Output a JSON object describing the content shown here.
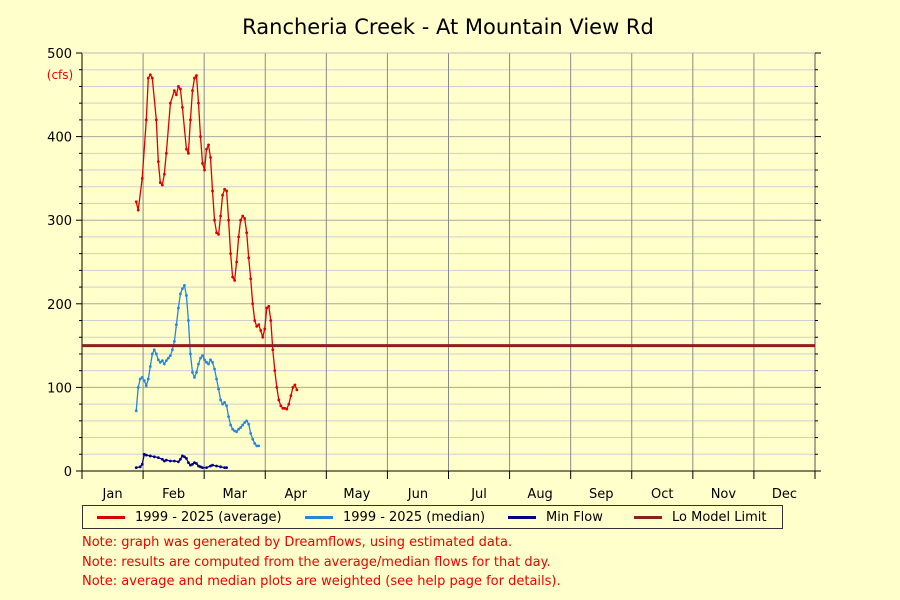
{
  "chart_data": {
    "type": "line",
    "title": "Rancheria Creek - At Mountain View Rd",
    "ylabel": "(cfs)",
    "ylim": [
      0,
      500
    ],
    "yticks": [
      "0",
      "100",
      "200",
      "300",
      "400",
      "500"
    ],
    "month_labels": [
      "Jan",
      "Feb",
      "Mar",
      "Apr",
      "May",
      "Jun",
      "Jul",
      "Aug",
      "Sep",
      "Oct",
      "Nov",
      "Dec"
    ],
    "xlim": [
      0,
      365
    ],
    "x_unit": "day of year",
    "grid": true,
    "legend_position": "bottom",
    "series": [
      {
        "name": "1999 - 2025 (average)",
        "color": "#dd0000",
        "points": [
          [
            27,
            322
          ],
          [
            28,
            312
          ],
          [
            30,
            350
          ],
          [
            32,
            420
          ],
          [
            33,
            470
          ],
          [
            34,
            474
          ],
          [
            35,
            470
          ],
          [
            37,
            420
          ],
          [
            38,
            370
          ],
          [
            39,
            345
          ],
          [
            40,
            342
          ],
          [
            41,
            355
          ],
          [
            42,
            380
          ],
          [
            44,
            440
          ],
          [
            46,
            455
          ],
          [
            47,
            450
          ],
          [
            48,
            460
          ],
          [
            49,
            457
          ],
          [
            50,
            435
          ],
          [
            52,
            385
          ],
          [
            53,
            380
          ],
          [
            54,
            420
          ],
          [
            55,
            455
          ],
          [
            56,
            470
          ],
          [
            57,
            473
          ],
          [
            58,
            440
          ],
          [
            59,
            400
          ],
          [
            60,
            368
          ],
          [
            61,
            360
          ],
          [
            62,
            385
          ],
          [
            63,
            390
          ],
          [
            64,
            375
          ],
          [
            65,
            335
          ],
          [
            66,
            300
          ],
          [
            67,
            285
          ],
          [
            68,
            283
          ],
          [
            69,
            305
          ],
          [
            70,
            330
          ],
          [
            71,
            337
          ],
          [
            72,
            335
          ],
          [
            73,
            300
          ],
          [
            74,
            260
          ],
          [
            75,
            232
          ],
          [
            76,
            228
          ],
          [
            77,
            250
          ],
          [
            78,
            280
          ],
          [
            79,
            300
          ],
          [
            80,
            305
          ],
          [
            81,
            302
          ],
          [
            82,
            285
          ],
          [
            83,
            255
          ],
          [
            84,
            230
          ],
          [
            85,
            200
          ],
          [
            86,
            180
          ],
          [
            87,
            173
          ],
          [
            88,
            175
          ],
          [
            89,
            168
          ],
          [
            90,
            160
          ],
          [
            91,
            170
          ],
          [
            92,
            195
          ],
          [
            93,
            197
          ],
          [
            94,
            180
          ],
          [
            95,
            145
          ],
          [
            96,
            120
          ],
          [
            97,
            100
          ],
          [
            98,
            85
          ],
          [
            99,
            78
          ],
          [
            100,
            75
          ],
          [
            101,
            75
          ],
          [
            102,
            74
          ],
          [
            103,
            80
          ],
          [
            104,
            90
          ],
          [
            105,
            100
          ],
          [
            106,
            103
          ],
          [
            107,
            97
          ]
        ]
      },
      {
        "name": "1999 - 2025 (median)",
        "color": "#2288dd",
        "points": [
          [
            27,
            72
          ],
          [
            28,
            100
          ],
          [
            29,
            110
          ],
          [
            30,
            112
          ],
          [
            31,
            108
          ],
          [
            32,
            102
          ],
          [
            33,
            110
          ],
          [
            34,
            125
          ],
          [
            35,
            140
          ],
          [
            36,
            145
          ],
          [
            37,
            140
          ],
          [
            38,
            133
          ],
          [
            39,
            130
          ],
          [
            40,
            132
          ],
          [
            41,
            128
          ],
          [
            42,
            132
          ],
          [
            43,
            135
          ],
          [
            44,
            138
          ],
          [
            45,
            145
          ],
          [
            46,
            155
          ],
          [
            47,
            175
          ],
          [
            48,
            195
          ],
          [
            49,
            212
          ],
          [
            50,
            218
          ],
          [
            51,
            222
          ],
          [
            52,
            210
          ],
          [
            53,
            180
          ],
          [
            54,
            140
          ],
          [
            55,
            118
          ],
          [
            56,
            112
          ],
          [
            57,
            118
          ],
          [
            58,
            128
          ],
          [
            59,
            135
          ],
          [
            60,
            138
          ],
          [
            61,
            133
          ],
          [
            62,
            130
          ],
          [
            63,
            128
          ],
          [
            64,
            133
          ],
          [
            65,
            130
          ],
          [
            66,
            122
          ],
          [
            67,
            110
          ],
          [
            68,
            98
          ],
          [
            69,
            85
          ],
          [
            70,
            80
          ],
          [
            71,
            82
          ],
          [
            72,
            78
          ],
          [
            73,
            65
          ],
          [
            74,
            55
          ],
          [
            75,
            50
          ],
          [
            76,
            48
          ],
          [
            77,
            47
          ],
          [
            78,
            50
          ],
          [
            79,
            52
          ],
          [
            80,
            55
          ],
          [
            81,
            58
          ],
          [
            82,
            60
          ],
          [
            83,
            56
          ],
          [
            84,
            45
          ],
          [
            85,
            38
          ],
          [
            86,
            33
          ],
          [
            87,
            30
          ],
          [
            88,
            30
          ]
        ]
      },
      {
        "name": "Min Flow",
        "color": "#000088",
        "points": [
          [
            27,
            4
          ],
          [
            29,
            5
          ],
          [
            30,
            8
          ],
          [
            31,
            20
          ],
          [
            32,
            19
          ],
          [
            34,
            18
          ],
          [
            36,
            17
          ],
          [
            38,
            16
          ],
          [
            40,
            14
          ],
          [
            41,
            12
          ],
          [
            42,
            13
          ],
          [
            44,
            12
          ],
          [
            46,
            12
          ],
          [
            48,
            11
          ],
          [
            49,
            14
          ],
          [
            50,
            18
          ],
          [
            51,
            17
          ],
          [
            52,
            15
          ],
          [
            53,
            10
          ],
          [
            54,
            7
          ],
          [
            55,
            8
          ],
          [
            56,
            10
          ],
          [
            57,
            9
          ],
          [
            58,
            6
          ],
          [
            59,
            5
          ],
          [
            60,
            4
          ],
          [
            62,
            4
          ],
          [
            64,
            6
          ],
          [
            65,
            7
          ],
          [
            67,
            6
          ],
          [
            69,
            5
          ],
          [
            71,
            4
          ],
          [
            72,
            4
          ]
        ]
      },
      {
        "name": "Lo Model Limit",
        "color": "#882222",
        "points": [
          [
            0,
            150
          ],
          [
            365,
            150
          ]
        ]
      }
    ]
  },
  "notes": [
    "Note: graph was generated by Dreamflows, using estimated data.",
    "Note: results are computed from the average/median flows for that day.",
    "Note: average and median plots are weighted (see help page for details)."
  ]
}
